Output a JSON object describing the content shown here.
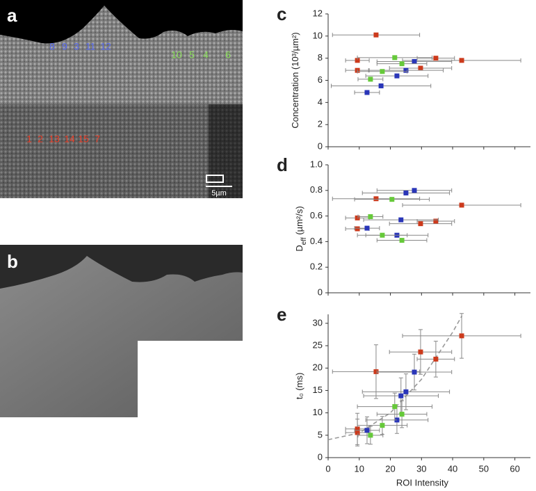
{
  "panel_a": {
    "label": "a",
    "scale_bar": "5µm",
    "roi_groups": [
      {
        "color": "#5a6cf0",
        "labels": [
          "8",
          "9",
          "3",
          "11",
          "12"
        ]
      },
      {
        "color": "#8be05a",
        "labels": [
          "10",
          "5",
          "4",
          "6"
        ]
      },
      {
        "color": "#e8402a",
        "labels": [
          "1",
          "2",
          "13",
          "14",
          "15",
          "7"
        ]
      }
    ]
  },
  "panel_b": {
    "label": "b"
  },
  "chart_data": [
    {
      "type": "scatter",
      "label": "c",
      "ylabel": [
        "Concentration (10³/µm²)"
      ],
      "xlim": [
        0,
        65
      ],
      "ylim": [
        0,
        12
      ],
      "xticks": [
        0,
        10,
        20,
        30,
        40,
        50,
        60
      ],
      "yticks": [
        0,
        2,
        4,
        6,
        8,
        10,
        12
      ],
      "show_xtick_labels": false,
      "series": [
        {
          "color": "#cc3a1c",
          "x": [
            9.4,
            9.4,
            15.4,
            29.7,
            34.6,
            42.9
          ],
          "values": [
            7.8,
            6.9,
            10.1,
            7.1,
            8.0,
            7.8
          ],
          "xerr": [
            3.8,
            3.8,
            14,
            10,
            6,
            19
          ]
        },
        {
          "color": "#2a36b8",
          "x": [
            12.5,
            17,
            22.1,
            25,
            27.7
          ],
          "values": [
            4.9,
            5.5,
            6.4,
            6.9,
            7.7
          ],
          "xerr": [
            4,
            16,
            10,
            12,
            12
          ]
        },
        {
          "color": "#66c93a",
          "x": [
            13.6,
            17.4,
            21.4,
            23.7
          ],
          "values": [
            6.1,
            6.8,
            8.05,
            7.5
          ],
          "xerr": [
            4,
            8,
            12,
            8
          ]
        }
      ]
    },
    {
      "type": "scatter",
      "label": "d",
      "ylabel": [
        "D",
        "eff",
        " (µm²/s)"
      ],
      "xlim": [
        0,
        65
      ],
      "ylim": [
        0,
        1
      ],
      "xticks": [
        0,
        10,
        20,
        30,
        40,
        50,
        60
      ],
      "yticks": [
        0,
        0.2,
        0.4,
        0.6,
        0.8,
        {
          "value": 1,
          "label": "1.0"
        }
      ],
      "show_xtick_labels": false,
      "series": [
        {
          "color": "#cc3a1c",
          "x": [
            9.4,
            9.4,
            15.4,
            29.7,
            34.6,
            42.9
          ],
          "values": [
            0.5,
            0.585,
            0.735,
            0.54,
            0.56,
            0.685
          ],
          "xerr": [
            3.8,
            3.8,
            14,
            10,
            6,
            19
          ]
        },
        {
          "color": "#2a36b8",
          "x": [
            12.5,
            22.1,
            23.4,
            25,
            27.7
          ],
          "values": [
            0.505,
            0.45,
            0.57,
            0.78,
            0.8
          ],
          "xerr": [
            4,
            10,
            12,
            14,
            12
          ]
        },
        {
          "color": "#66c93a",
          "x": [
            13.6,
            17.4,
            20.5,
            23.7
          ],
          "values": [
            0.595,
            0.45,
            0.73,
            0.41
          ],
          "xerr": [
            4,
            8,
            12,
            8
          ]
        }
      ]
    },
    {
      "type": "scatter",
      "label": "e",
      "ylabel": [
        "t₀ (ms)"
      ],
      "xlabel": "ROI Intensity",
      "xlim": [
        0,
        65
      ],
      "ylim": [
        0,
        32
      ],
      "xticks": [
        0,
        10,
        20,
        30,
        40,
        50,
        60
      ],
      "yticks": [
        0,
        5,
        10,
        15,
        20,
        25,
        30
      ],
      "show_xtick_labels": true,
      "series": [
        {
          "color": "#cc3a1c",
          "x": [
            9.4,
            9.4,
            15.4,
            29.7,
            34.6,
            42.9
          ],
          "values": [
            6.4,
            5.6,
            19.2,
            23.6,
            22.0,
            27.2
          ],
          "xerr": [
            3.8,
            3.8,
            14,
            10,
            6,
            19
          ],
          "yerr": [
            3.5,
            3,
            6,
            5,
            4,
            5
          ]
        },
        {
          "color": "#2a36b8",
          "x": [
            12.5,
            22.1,
            23.4,
            25,
            27.7
          ],
          "values": [
            6.1,
            8.4,
            13.8,
            14.7,
            19.1
          ],
          "xerr": [
            4,
            10,
            12,
            14,
            12
          ],
          "yerr": [
            3,
            3,
            4,
            4,
            4
          ]
        },
        {
          "color": "#66c93a",
          "x": [
            13.6,
            17.4,
            21.4,
            23.7
          ],
          "values": [
            5.0,
            7.2,
            11.4,
            9.7
          ],
          "xerr": [
            4,
            8,
            12,
            8
          ],
          "yerr": [
            2,
            2,
            3,
            3
          ]
        }
      ],
      "fit": {
        "color": "#999999",
        "x": [
          0,
          10,
          20,
          30,
          40,
          43
        ],
        "values": [
          4,
          5.5,
          10,
          17.5,
          28,
          31.7
        ]
      }
    }
  ]
}
